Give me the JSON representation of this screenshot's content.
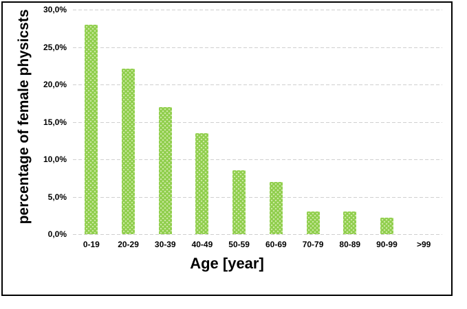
{
  "chart_data": {
    "type": "bar",
    "title": "",
    "xlabel": "Age [year]",
    "ylabel": "percentage of female physicsts",
    "categories": [
      "0-19",
      "20-29",
      "30-39",
      "40-49",
      "50-59",
      "60-69",
      "70-79",
      "80-89",
      "90-99",
      ">99"
    ],
    "values": [
      28.0,
      22.1,
      17.0,
      13.5,
      8.5,
      7.0,
      3.0,
      3.0,
      2.2,
      0.0
    ],
    "ylim": [
      0,
      30
    ],
    "ytick_step": 5,
    "ytick_labels": [
      "0,0%",
      "5,0%",
      "10,0%",
      "15,0%",
      "20,0%",
      "25,0%",
      "30,0%"
    ],
    "decimal_separator": ",",
    "grid": "horizontal-dashed",
    "legend": "none",
    "colors": {
      "bar": "#8fce4c",
      "bar_dots": "#cfeaa6",
      "grid": "#cfcfcf",
      "text": "#000000",
      "frame_border": "#000000",
      "background": "#ffffff"
    }
  }
}
